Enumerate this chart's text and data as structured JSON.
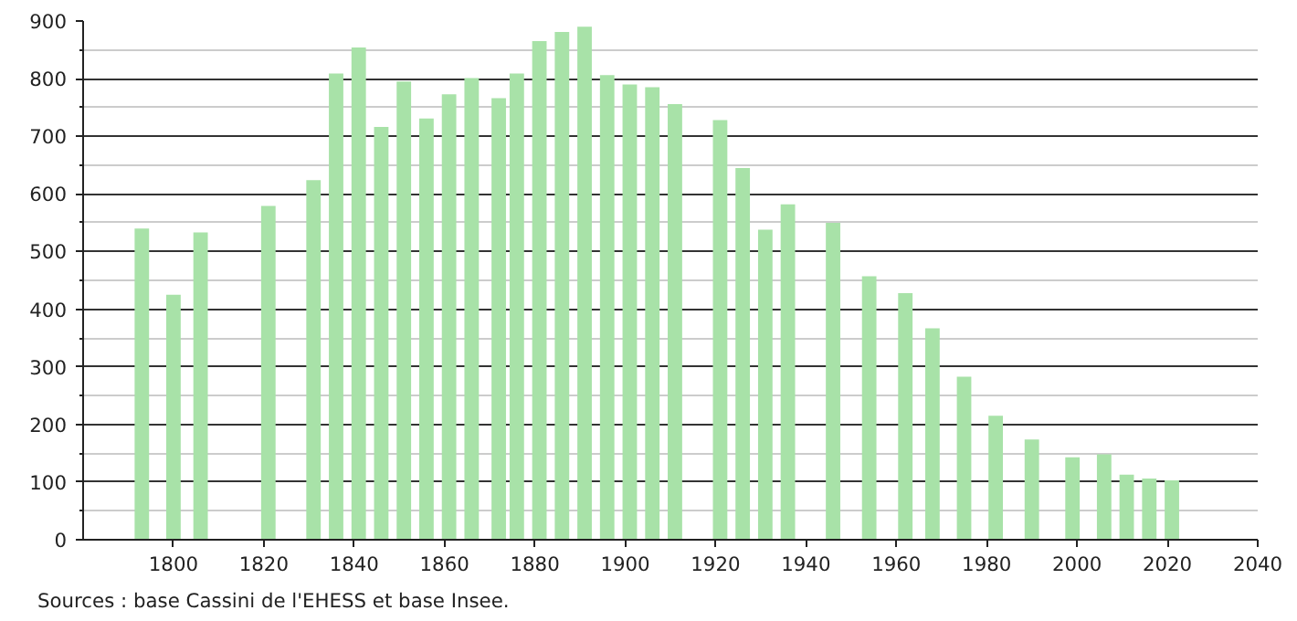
{
  "chart_data": {
    "type": "bar",
    "annotations": [
      "Sources : base Cassini de l'EHESS et base Insee."
    ],
    "x": [
      1793,
      1800,
      1806,
      1821,
      1831,
      1836,
      1841,
      1846,
      1851,
      1856,
      1861,
      1866,
      1872,
      1876,
      1881,
      1886,
      1891,
      1896,
      1901,
      1906,
      1911,
      1921,
      1926,
      1931,
      1936,
      1946,
      1954,
      1962,
      1968,
      1975,
      1982,
      1990,
      1999,
      2006,
      2011,
      2016,
      2021
    ],
    "values": [
      540,
      425,
      533,
      579,
      624,
      809,
      854,
      716,
      795,
      731,
      773,
      801,
      766,
      809,
      865,
      881,
      890,
      806,
      790,
      785,
      756,
      728,
      645,
      538,
      582,
      550,
      457,
      428,
      367,
      283,
      215,
      174,
      143,
      148,
      113,
      106,
      103
    ],
    "color": "#a8e2a8",
    "xlim": [
      1780,
      2040
    ],
    "xticks": [
      1800,
      1820,
      1840,
      1860,
      1880,
      1900,
      1920,
      1940,
      1960,
      1980,
      2000,
      2020,
      2040
    ],
    "ylim": [
      0,
      900
    ],
    "yticks": [
      0,
      100,
      200,
      300,
      400,
      500,
      600,
      700,
      800,
      900
    ],
    "grid": "y"
  }
}
